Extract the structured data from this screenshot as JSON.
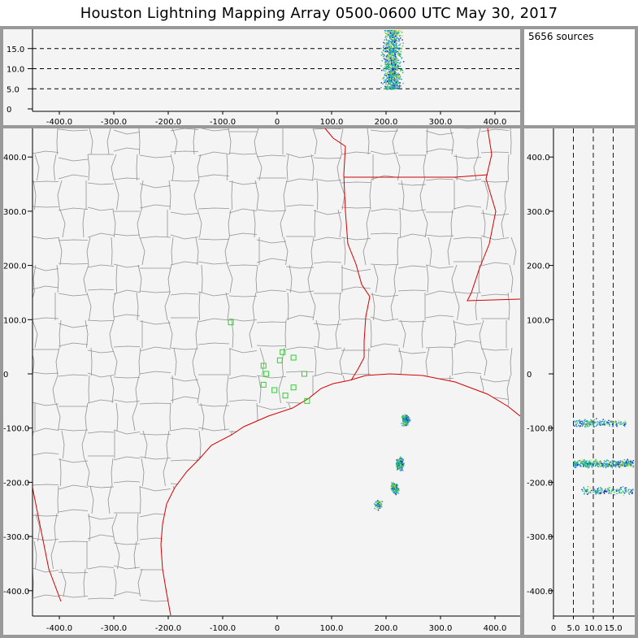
{
  "title": "Houston Lightning Mapping Array   0500-0600 UTC  May 30, 2017",
  "source_count": "5656 sources",
  "colors": {
    "panel_bg": "#f4f4f4",
    "frame": "#999999",
    "county_lines": "#909090",
    "state_lines": "#d40000",
    "station_marker": "#33cc33"
  },
  "chart_data": [
    {
      "type": "scatter",
      "panel": "altitude-vs-east-west",
      "x_ticks": [
        "-400.0",
        "-300.0",
        "-200.0",
        "-100.0",
        "0",
        "100.0",
        "200.0",
        "300.0",
        "400.0"
      ],
      "y_ticks": [
        "0",
        "5.0",
        "10.0",
        "15.0"
      ],
      "xlim": [
        -450,
        450
      ],
      "ylim": [
        0,
        20
      ],
      "dashed_lines_y": [
        5,
        10,
        15
      ],
      "clusters": [
        {
          "x_range": [
            175,
            245
          ],
          "z_range": [
            5,
            20
          ],
          "n": 900
        }
      ]
    },
    {
      "type": "scatter",
      "panel": "plan-view",
      "x_ticks": [
        "-400.0",
        "-300.0",
        "-200.0",
        "-100.0",
        "0",
        "100.0",
        "200.0",
        "300.0",
        "400.0"
      ],
      "y_ticks": [
        "400.0",
        "300.0",
        "200.0",
        "100.0",
        "0",
        "-100.0",
        "-200.0",
        "-300.0",
        "-400.0"
      ],
      "xlim": [
        -450,
        450
      ],
      "ylim": [
        -440,
        450
      ],
      "clusters": [
        {
          "x": 235,
          "y": -85,
          "n": 220
        },
        {
          "x": 225,
          "y": -165,
          "n": 380
        },
        {
          "x": 215,
          "y": -210,
          "n": 150
        },
        {
          "x": 185,
          "y": -240,
          "n": 70
        }
      ],
      "stations": [
        {
          "x": -85,
          "y": 95
        },
        {
          "x": -25,
          "y": 15
        },
        {
          "x": -20,
          "y": 0
        },
        {
          "x": -25,
          "y": -20
        },
        {
          "x": -5,
          "y": -30
        },
        {
          "x": 5,
          "y": 25
        },
        {
          "x": 10,
          "y": 40
        },
        {
          "x": 30,
          "y": 30
        },
        {
          "x": 50,
          "y": 0
        },
        {
          "x": 30,
          "y": -25
        },
        {
          "x": 15,
          "y": -40
        },
        {
          "x": 55,
          "y": -50
        }
      ]
    },
    {
      "type": "scatter",
      "panel": "north-south-vs-altitude",
      "x_ticks": [
        "0",
        "5.0",
        "10.0",
        "15.0"
      ],
      "y_ticks": [
        "400.0",
        "300.0",
        "200.0",
        "100.0",
        "0",
        "-100.0",
        "-200.0",
        "-300.0",
        "-400.0"
      ],
      "xlim": [
        0,
        20
      ],
      "ylim": [
        -440,
        450
      ],
      "dashed_lines_x": [
        5,
        10,
        15
      ],
      "clusters": [
        {
          "y": -90,
          "z_range": [
            5,
            18
          ],
          "n": 200
        },
        {
          "y": -165,
          "z_range": [
            5,
            20
          ],
          "n": 400
        },
        {
          "y": -215,
          "z_range": [
            7,
            20
          ],
          "n": 160
        }
      ]
    }
  ]
}
